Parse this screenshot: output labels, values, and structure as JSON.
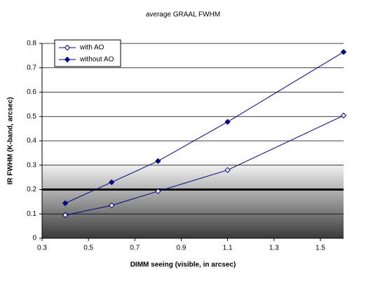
{
  "chart_data": {
    "type": "line",
    "title": "average GRAAL FWHM",
    "x_label": "DIMM seeing (visible, in arcsec)",
    "y_label": "IR FWHM (K-band, arcsec)",
    "x": [
      0.4,
      0.6,
      0.8,
      1.1,
      1.6
    ],
    "series": [
      {
        "name": "with AO",
        "color": "#000080",
        "marker": "open-diamond",
        "values": [
          0.095,
          0.135,
          0.193,
          0.28,
          0.504
        ]
      },
      {
        "name": "without AO",
        "color": "#000080",
        "marker": "filled-diamond",
        "values": [
          0.144,
          0.23,
          0.317,
          0.478,
          0.765
        ]
      }
    ],
    "threshold": 0.2,
    "xlim": [
      0.3,
      1.6
    ],
    "xticks": [
      0.3,
      0.5,
      0.7,
      0.9,
      1.1,
      1.3,
      1.5
    ],
    "ylim": [
      0,
      0.8
    ],
    "yticks": [
      0,
      0.1,
      0.2,
      0.3,
      0.4,
      0.5,
      0.6,
      0.7,
      0.8
    ],
    "grid": true,
    "legend": "upper left"
  }
}
